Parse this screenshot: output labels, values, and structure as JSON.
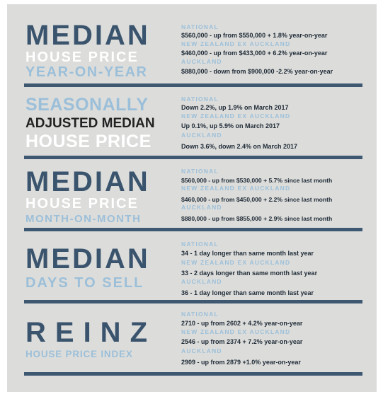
{
  "sections": [
    {
      "title_lines": [
        "MEDIAN",
        "HOUSE PRICE",
        "YEAR-ON-YEAR"
      ],
      "rows": [
        {
          "heading": "NATIONAL",
          "value": "$560,000 - up from $550,000 + 1.8% year-on-year"
        },
        {
          "heading": "NEW ZEALAND EX AUCKLAND",
          "value": "$460,000 - up from $433,000 + 6.2% year-on-year"
        },
        {
          "heading": "AUCKLAND",
          "value": "$880,000 - down from $900,000 -2.2% year-on-year"
        }
      ]
    },
    {
      "title_lines": [
        "SEASONALLY",
        "ADJUSTED MEDIAN",
        "HOUSE PRICE"
      ],
      "rows": [
        {
          "heading": "NATIONAL",
          "value": "Down 2.2%, up 1.9% on March 2017"
        },
        {
          "heading": "NEW ZEALAND EX AUCKLAND",
          "value": "Up 0.1%, up 5.9% on March 2017"
        },
        {
          "heading": "AUCKLAND",
          "value": "Down 3.6%, down 2.4% on March 2017"
        }
      ]
    },
    {
      "title_lines": [
        "MEDIAN",
        "HOUSE PRICE",
        "MONTH-ON-MONTH"
      ],
      "rows": [
        {
          "heading": "NATIONAL",
          "value": "$560,000 - up from $530,000 + 5.7% since last month"
        },
        {
          "heading": "NEW ZEALAND EX AUCKLAND",
          "value": "$460,000 - up from $450,000 + 2.2% since last month"
        },
        {
          "heading": "AUCKLAND",
          "value": "$880,000 - up from $855,000 + 2.9% since last month"
        }
      ]
    },
    {
      "title_lines": [
        "MEDIAN",
        "DAYS TO SELL"
      ],
      "rows": [
        {
          "heading": "NATIONAL",
          "value": "34 -  1 day longer than same month last year"
        },
        {
          "heading": "NEW ZEALAND EX AUCKLAND",
          "value": "33 -  2 days longer than same month last year"
        },
        {
          "heading": "AUCKLAND",
          "value": "36 -  1 day longer than same month last year"
        }
      ]
    },
    {
      "title_lines": [
        "REINZ",
        "HOUSE PRICE INDEX"
      ],
      "rows": [
        {
          "heading": "NATIONAL",
          "value": "2710 - up from 2602 + 4.2% year-on-year"
        },
        {
          "heading": "NEW ZEALAND EX AUCKLAND",
          "value": "2546 - up from 2374 + 7.2% year-on-year"
        },
        {
          "heading": "AUCKLAND",
          "value": "2909 - up from 2879 +1.0% year-on-year"
        }
      ]
    }
  ],
  "colors": {
    "background": "#dcdddb",
    "dark_blue": "#3a546e",
    "light_blue": "#9cbfd9",
    "rule": "#3f5872"
  }
}
